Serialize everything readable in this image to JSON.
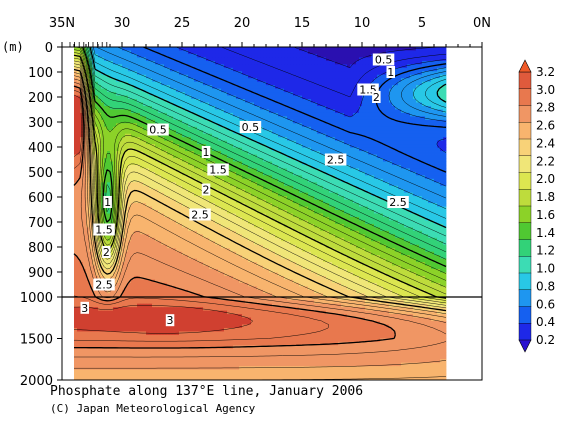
{
  "chart_data": {
    "type": "heatmap",
    "title": "",
    "xlabel": "",
    "ylabel": "(m)",
    "x_ticks": [
      "35N",
      "30",
      "25",
      "20",
      "15",
      "10",
      "5",
      "0N"
    ],
    "x_range_lat": [
      35,
      0
    ],
    "data_lat_range": [
      34,
      3
    ],
    "y_ticks": [
      "0",
      "100",
      "200",
      "300",
      "400",
      "500",
      "600",
      "700",
      "800",
      "900",
      "1000",
      "1500",
      "2000"
    ],
    "y_range_m": [
      0,
      2000
    ],
    "y_scale_break_m": 1000,
    "colorbar": {
      "ticks": [
        "0.2",
        "0.4",
        "0.6",
        "0.8",
        "1.0",
        "1.2",
        "1.4",
        "1.6",
        "1.8",
        "2.0",
        "2.2",
        "2.4",
        "2.6",
        "2.8",
        "3.0",
        "3.2"
      ],
      "range": [
        0.2,
        3.2
      ],
      "colors": [
        "#1e28e8",
        "#1560f0",
        "#1e96f0",
        "#28c8e6",
        "#3cdcb4",
        "#32d278",
        "#50c832",
        "#8cd228",
        "#bedc3c",
        "#dce650",
        "#f0e678",
        "#f8d278",
        "#f8b46e",
        "#f09664",
        "#e8784e",
        "#e05a3c"
      ],
      "extends": "both"
    },
    "contour_labels": [
      {
        "lat": 8.2,
        "depth": 50,
        "text": "0.5"
      },
      {
        "lat": 7.6,
        "depth": 100,
        "text": "1"
      },
      {
        "lat": 9.5,
        "depth": 170,
        "text": "1.5"
      },
      {
        "lat": 8.8,
        "depth": 200,
        "text": "2"
      },
      {
        "lat": 27.0,
        "depth": 330,
        "text": "0.5"
      },
      {
        "lat": 19.3,
        "depth": 320,
        "text": "0.5"
      },
      {
        "lat": 23.0,
        "depth": 420,
        "text": "1"
      },
      {
        "lat": 22.0,
        "depth": 490,
        "text": "1.5"
      },
      {
        "lat": 23.0,
        "depth": 570,
        "text": "2"
      },
      {
        "lat": 12.2,
        "depth": 450,
        "text": "2.5"
      },
      {
        "lat": 23.5,
        "depth": 670,
        "text": "2.5"
      },
      {
        "lat": 7.0,
        "depth": 620,
        "text": "2.5"
      },
      {
        "lat": 31.2,
        "depth": 620,
        "text": "1"
      },
      {
        "lat": 31.5,
        "depth": 730,
        "text": "1.5"
      },
      {
        "lat": 31.3,
        "depth": 820,
        "text": "2"
      },
      {
        "lat": 31.5,
        "depth": 950,
        "text": "2.5"
      },
      {
        "lat": 33.1,
        "depth": 1130,
        "text": "3"
      },
      {
        "lat": 26.0,
        "depth": 1280,
        "text": "3"
      }
    ]
  },
  "caption": {
    "title": "Phosphate along 137°E line, January 2006",
    "credit": "(C) Japan Meteorological Agency"
  }
}
